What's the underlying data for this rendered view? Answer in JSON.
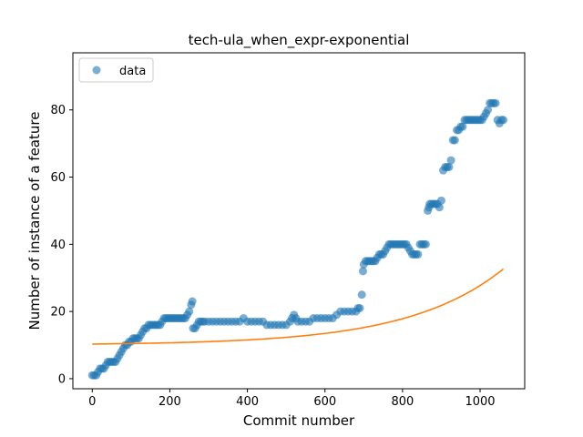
{
  "chart_data": {
    "type": "scatter",
    "title": "tech-ula_when_expr-exponential",
    "xlabel": "Commit number",
    "ylabel": "Number of instance of a feature",
    "xlim": [
      -50,
      1115
    ],
    "ylim": [
      -3,
      97
    ],
    "xticks": [
      0,
      200,
      400,
      600,
      800,
      1000
    ],
    "yticks": [
      0,
      20,
      40,
      60,
      80
    ],
    "grid": false,
    "legend": {
      "position": "top-left",
      "entries": [
        "data"
      ]
    },
    "colors": {
      "data": "#1f77b4",
      "fit": "#ff7f0e"
    },
    "series": [
      {
        "name": "data",
        "kind": "scatter",
        "points": [
          [
            0,
            1
          ],
          [
            5,
            1
          ],
          [
            10,
            1
          ],
          [
            15,
            2
          ],
          [
            20,
            3
          ],
          [
            25,
            3
          ],
          [
            30,
            3
          ],
          [
            35,
            4
          ],
          [
            40,
            5
          ],
          [
            45,
            5
          ],
          [
            50,
            5
          ],
          [
            55,
            5
          ],
          [
            60,
            5
          ],
          [
            65,
            6
          ],
          [
            70,
            7
          ],
          [
            75,
            8
          ],
          [
            80,
            9
          ],
          [
            85,
            10
          ],
          [
            90,
            10
          ],
          [
            95,
            11
          ],
          [
            100,
            11
          ],
          [
            105,
            12
          ],
          [
            110,
            12
          ],
          [
            115,
            12
          ],
          [
            120,
            12
          ],
          [
            125,
            13
          ],
          [
            130,
            14
          ],
          [
            135,
            15
          ],
          [
            140,
            15
          ],
          [
            145,
            16
          ],
          [
            150,
            16
          ],
          [
            155,
            16
          ],
          [
            160,
            16
          ],
          [
            165,
            16
          ],
          [
            170,
            16
          ],
          [
            175,
            16
          ],
          [
            180,
            17
          ],
          [
            185,
            18
          ],
          [
            190,
            18
          ],
          [
            195,
            18
          ],
          [
            200,
            18
          ],
          [
            205,
            18
          ],
          [
            210,
            18
          ],
          [
            215,
            18
          ],
          [
            220,
            18
          ],
          [
            225,
            18
          ],
          [
            230,
            18
          ],
          [
            235,
            18
          ],
          [
            240,
            18
          ],
          [
            245,
            19
          ],
          [
            250,
            20
          ],
          [
            255,
            22
          ],
          [
            258,
            23
          ],
          [
            260,
            15
          ],
          [
            265,
            15
          ],
          [
            270,
            16
          ],
          [
            275,
            17
          ],
          [
            280,
            17
          ],
          [
            285,
            17
          ],
          [
            290,
            17
          ],
          [
            300,
            17
          ],
          [
            310,
            17
          ],
          [
            320,
            17
          ],
          [
            330,
            17
          ],
          [
            340,
            17
          ],
          [
            350,
            17
          ],
          [
            360,
            17
          ],
          [
            370,
            17
          ],
          [
            380,
            17
          ],
          [
            390,
            18
          ],
          [
            400,
            17
          ],
          [
            410,
            17
          ],
          [
            420,
            17
          ],
          [
            430,
            17
          ],
          [
            440,
            17
          ],
          [
            450,
            16
          ],
          [
            460,
            16
          ],
          [
            470,
            16
          ],
          [
            480,
            16
          ],
          [
            490,
            16
          ],
          [
            500,
            16
          ],
          [
            510,
            17
          ],
          [
            515,
            18
          ],
          [
            520,
            19
          ],
          [
            525,
            18
          ],
          [
            530,
            17
          ],
          [
            540,
            17
          ],
          [
            550,
            17
          ],
          [
            560,
            17
          ],
          [
            570,
            18
          ],
          [
            580,
            18
          ],
          [
            590,
            18
          ],
          [
            600,
            18
          ],
          [
            610,
            18
          ],
          [
            620,
            18
          ],
          [
            630,
            19
          ],
          [
            640,
            20
          ],
          [
            650,
            20
          ],
          [
            660,
            20
          ],
          [
            670,
            20
          ],
          [
            680,
            20
          ],
          [
            685,
            21
          ],
          [
            690,
            21
          ],
          [
            695,
            25
          ],
          [
            698,
            32
          ],
          [
            700,
            34
          ],
          [
            705,
            35
          ],
          [
            710,
            35
          ],
          [
            715,
            35
          ],
          [
            720,
            35
          ],
          [
            725,
            35
          ],
          [
            730,
            35
          ],
          [
            735,
            36
          ],
          [
            740,
            37
          ],
          [
            745,
            37
          ],
          [
            750,
            37
          ],
          [
            755,
            38
          ],
          [
            760,
            39
          ],
          [
            765,
            40
          ],
          [
            770,
            40
          ],
          [
            775,
            40
          ],
          [
            780,
            40
          ],
          [
            785,
            40
          ],
          [
            790,
            40
          ],
          [
            795,
            40
          ],
          [
            800,
            40
          ],
          [
            805,
            40
          ],
          [
            810,
            40
          ],
          [
            815,
            39
          ],
          [
            820,
            38
          ],
          [
            825,
            37
          ],
          [
            830,
            37
          ],
          [
            835,
            37
          ],
          [
            840,
            37
          ],
          [
            845,
            40
          ],
          [
            850,
            40
          ],
          [
            855,
            40
          ],
          [
            860,
            40
          ],
          [
            865,
            50
          ],
          [
            868,
            51
          ],
          [
            870,
            52
          ],
          [
            875,
            52
          ],
          [
            880,
            52
          ],
          [
            885,
            52
          ],
          [
            890,
            52
          ],
          [
            895,
            51
          ],
          [
            900,
            53
          ],
          [
            905,
            62
          ],
          [
            910,
            63
          ],
          [
            915,
            63
          ],
          [
            920,
            63
          ],
          [
            925,
            65
          ],
          [
            930,
            71
          ],
          [
            935,
            71
          ],
          [
            940,
            74
          ],
          [
            945,
            74
          ],
          [
            950,
            75
          ],
          [
            955,
            75
          ],
          [
            960,
            77
          ],
          [
            965,
            77
          ],
          [
            970,
            77
          ],
          [
            975,
            77
          ],
          [
            980,
            77
          ],
          [
            985,
            77
          ],
          [
            990,
            77
          ],
          [
            995,
            77
          ],
          [
            1000,
            77
          ],
          [
            1005,
            77
          ],
          [
            1010,
            78
          ],
          [
            1015,
            79
          ],
          [
            1020,
            80
          ],
          [
            1025,
            82
          ],
          [
            1030,
            82
          ],
          [
            1035,
            82
          ],
          [
            1040,
            82
          ],
          [
            1045,
            77
          ],
          [
            1050,
            76
          ],
          [
            1055,
            77
          ],
          [
            1060,
            77
          ]
        ]
      },
      {
        "name": "fit",
        "kind": "line",
        "model": "exponential",
        "x_range": [
          0,
          1060
        ],
        "formula_params": {
          "a": 10.0,
          "b": 0.3,
          "k": 0.00408
        }
      }
    ]
  }
}
